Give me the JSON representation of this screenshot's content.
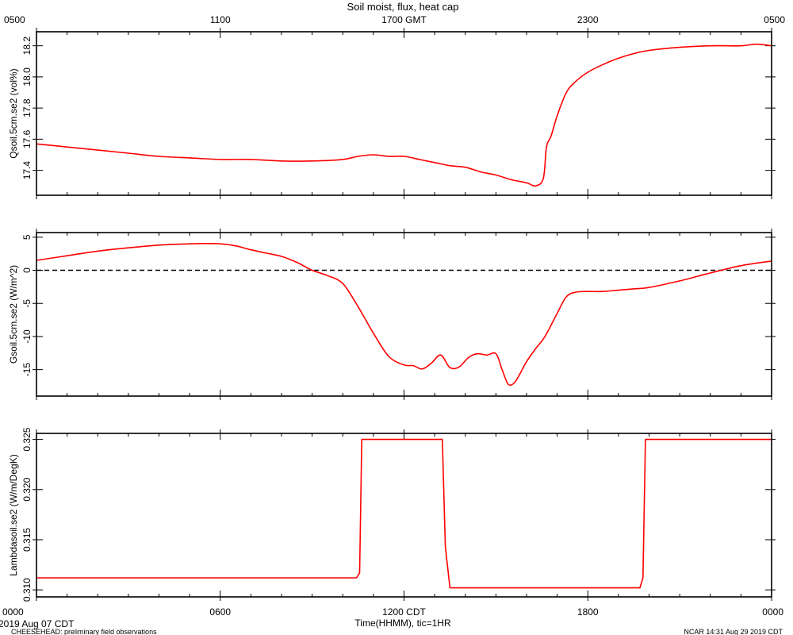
{
  "title": "Soil moist, flux, heat cap",
  "top_axis": {
    "ticks": [
      "0500",
      "1100",
      "1700 GMT",
      "2300",
      "0500"
    ]
  },
  "bottom_axis": {
    "ticks": [
      "0000",
      "0600",
      "1200 CDT",
      "1800",
      "0000"
    ],
    "label": "Time(HHMM), tic=1HR"
  },
  "footer": {
    "date": "2019 Aug 07 CDT",
    "project": "CHEESEHEAD: preliminary field observations",
    "credit": "NCAR 14:31 Aug 29 2019 CDT"
  },
  "colors": {
    "series": "#ff0000",
    "axis": "#000000",
    "zero_line": "#000000"
  },
  "chart_data": [
    {
      "type": "line",
      "ylabel": "Qsoil.5cm.se2 (vol%)",
      "ylim": [
        17.24,
        18.29
      ],
      "yticks": [
        17.4,
        17.6,
        17.8,
        18.0,
        18.2
      ],
      "ytick_labels": [
        "17.4",
        "17.6",
        "17.8",
        "18.0",
        "18.2"
      ],
      "xlim": [
        0,
        24
      ],
      "x": [
        0,
        1,
        2,
        3,
        4,
        5,
        6,
        7,
        8,
        9,
        10,
        10.5,
        11,
        11.5,
        12,
        12.5,
        13,
        13.5,
        14,
        14.5,
        15,
        15.5,
        16,
        16.3,
        16.55,
        16.65,
        16.8,
        17,
        17.3,
        17.6,
        18,
        18.5,
        19,
        19.5,
        20,
        21,
        22,
        23,
        23.5,
        24
      ],
      "y": [
        17.57,
        17.55,
        17.53,
        17.51,
        17.49,
        17.48,
        17.47,
        17.47,
        17.46,
        17.46,
        17.47,
        17.49,
        17.5,
        17.49,
        17.49,
        17.47,
        17.45,
        17.43,
        17.42,
        17.39,
        17.37,
        17.34,
        17.32,
        17.3,
        17.35,
        17.55,
        17.62,
        17.75,
        17.9,
        17.97,
        18.03,
        18.08,
        18.12,
        18.15,
        18.17,
        18.19,
        18.2,
        18.2,
        18.21,
        18.2
      ]
    },
    {
      "type": "line",
      "ylabel": "Gsoil.5cm.se2 (W/m^2)",
      "ylim": [
        -19,
        5.7
      ],
      "yticks": [
        5,
        0,
        -5,
        -10,
        -15
      ],
      "ytick_labels": [
        "5",
        "0",
        "-5",
        "-10",
        "-15"
      ],
      "zero_line": true,
      "xlim": [
        0,
        24
      ],
      "x": [
        0,
        1,
        2,
        3,
        4,
        5,
        5.5,
        6,
        6.5,
        7,
        7.5,
        8,
        8.5,
        9,
        9.5,
        10,
        10.5,
        11,
        11.5,
        12,
        12.3,
        12.6,
        12.9,
        13.2,
        13.5,
        13.8,
        14.1,
        14.4,
        14.7,
        15,
        15.2,
        15.4,
        15.6,
        15.8,
        16,
        16.3,
        16.6,
        17,
        17.3,
        17.6,
        18,
        18.5,
        19,
        19.5,
        20,
        21,
        22,
        23,
        24
      ],
      "y": [
        1.5,
        2.2,
        2.9,
        3.4,
        3.8,
        4.0,
        4.05,
        4.0,
        3.7,
        3.1,
        2.6,
        2.1,
        1.2,
        0.0,
        -0.8,
        -2.0,
        -5.5,
        -9.5,
        -13.0,
        -14.3,
        -14.4,
        -14.9,
        -14.0,
        -12.8,
        -14.7,
        -14.6,
        -13.2,
        -12.6,
        -12.8,
        -12.6,
        -15.0,
        -17.2,
        -17.0,
        -15.5,
        -13.8,
        -11.8,
        -10.0,
        -6.5,
        -4.0,
        -3.3,
        -3.2,
        -3.2,
        -3.0,
        -2.8,
        -2.6,
        -1.6,
        -0.4,
        0.7,
        1.4
      ]
    },
    {
      "type": "line",
      "ylabel": "Lambdasoil.se2 (W/m/DegK)",
      "ylim": [
        0.3093,
        0.3256
      ],
      "yticks": [
        0.31,
        0.315,
        0.32,
        0.325
      ],
      "ytick_labels": [
        "0.310",
        "0.315",
        "0.320",
        "0.325"
      ],
      "xlim": [
        0,
        24
      ],
      "x": [
        0,
        10.45,
        10.55,
        10.62,
        13.25,
        13.35,
        13.5,
        19.7,
        19.8,
        19.88,
        24
      ],
      "y": [
        0.3112,
        0.3112,
        0.3117,
        0.325,
        0.325,
        0.3143,
        0.3102,
        0.3102,
        0.3112,
        0.325,
        0.325
      ]
    }
  ]
}
